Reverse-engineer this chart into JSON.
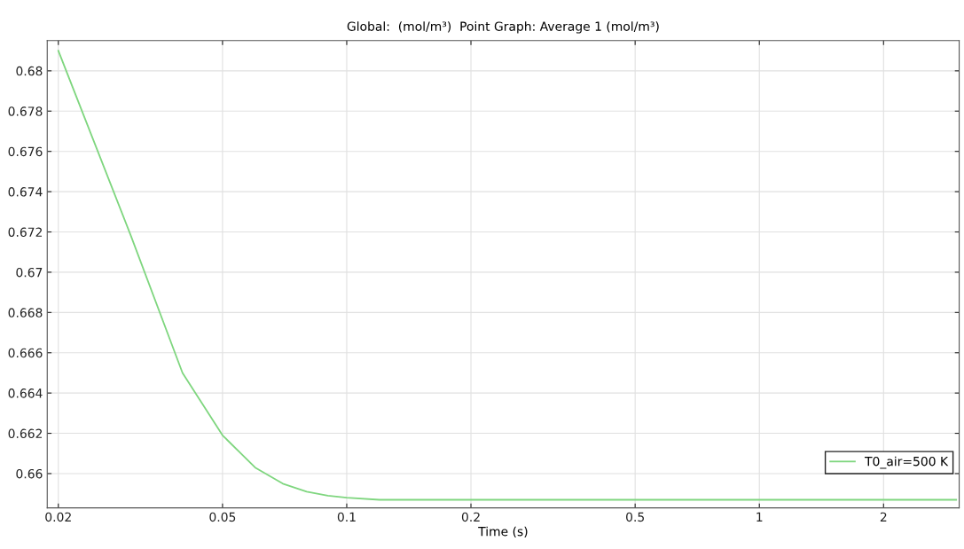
{
  "chart_data": {
    "type": "line",
    "title": "Global:  (mol/m³)  Point Graph: Average 1 (mol/m³)",
    "xlabel": "Time (s)",
    "log": "x",
    "x": [
      0.02,
      0.03,
      0.04,
      0.05,
      0.06,
      0.07,
      0.08,
      0.09,
      0.1,
      0.12,
      0.15,
      0.2,
      0.5,
      1,
      2,
      3
    ],
    "series": [
      {
        "name": "T0_air=500 K",
        "color": "#7fd67f",
        "values": [
          0.681,
          0.6718,
          0.665,
          0.6619,
          0.6603,
          0.6595,
          0.6591,
          0.6589,
          0.6588,
          0.6587,
          0.6587,
          0.6587,
          0.6587,
          0.6587,
          0.6587,
          0.6587
        ]
      }
    ],
    "xlim": [
      0.0188,
      3.05
    ],
    "ylim": [
      0.6583,
      0.6815
    ],
    "xticks": [
      0.02,
      0.05,
      0.1,
      0.2,
      0.5,
      1,
      2
    ],
    "yticks": [
      0.66,
      0.662,
      0.664,
      0.666,
      0.668,
      0.67,
      0.672,
      0.674,
      0.676,
      0.678,
      0.68
    ],
    "grid": true,
    "legend": "bottom right",
    "marker": "none",
    "line_style": "solid"
  }
}
